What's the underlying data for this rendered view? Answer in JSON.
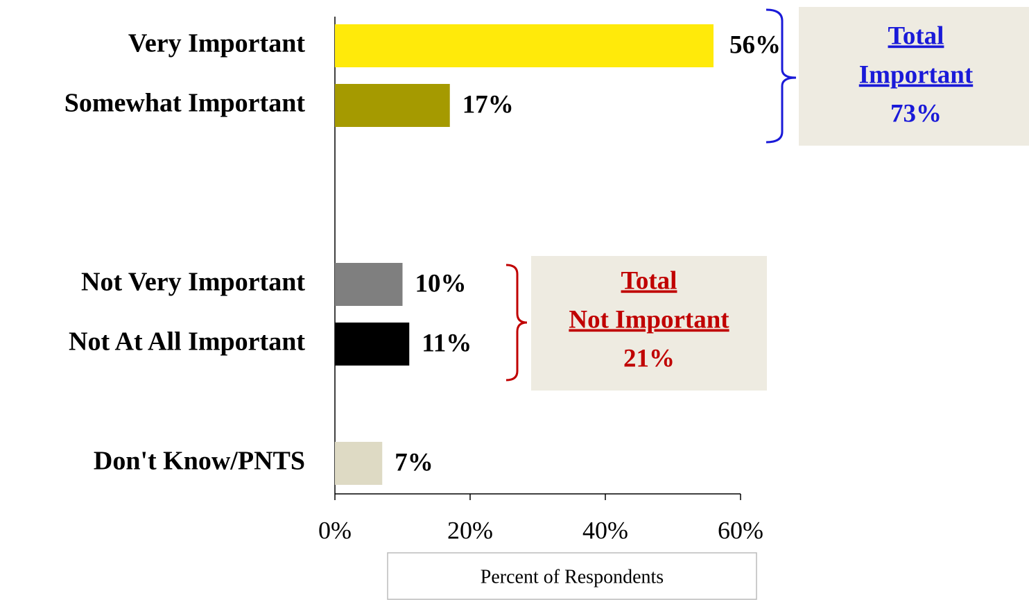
{
  "chart_data": {
    "type": "bar",
    "orientation": "horizontal",
    "categories": [
      "Very Important",
      "Somewhat Important",
      null,
      null,
      "Not Very Important",
      "Not At All Important",
      null,
      "Don't Know/PNTS"
    ],
    "values": [
      56,
      17,
      null,
      null,
      10,
      11,
      null,
      7
    ],
    "value_labels": [
      "56%",
      "17%",
      null,
      null,
      "10%",
      "11%",
      null,
      "7%"
    ],
    "colors": [
      "#ffea0a",
      "#a59a00",
      null,
      null,
      "#7f7f7f",
      "#000000",
      null,
      "#dedac4"
    ],
    "xlim": [
      0,
      60
    ],
    "xticks": [
      {
        "value": 0,
        "label": "0%"
      },
      {
        "value": 20,
        "label": "20%"
      },
      {
        "value": 40,
        "label": "40%"
      },
      {
        "value": 60,
        "label": "60%"
      }
    ],
    "xlabel": "Percent of Respondents",
    "annotations": [
      {
        "lines": [
          "Total",
          "Important"
        ],
        "value": 73,
        "value_label": "73%",
        "color": "#1a1ad8"
      },
      {
        "lines": [
          "Total",
          "Not Important"
        ],
        "value": 21,
        "value_label": "21%",
        "color": "#c00000"
      }
    ]
  }
}
